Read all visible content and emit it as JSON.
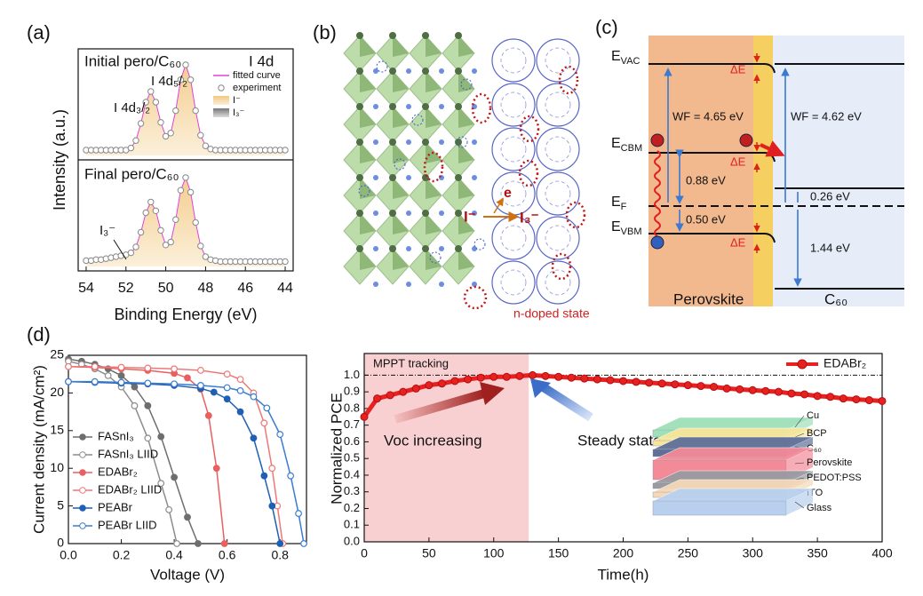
{
  "panel_labels": [
    "(a)",
    "(b)",
    "(c)",
    "(d)"
  ],
  "chart_data": [
    {
      "type": "line",
      "panel_titles": [
        "Initial pero/C₆₀",
        "Final pero/C₆₀"
      ],
      "annotation": "I 4d",
      "peak_labels": [
        "I 4d₃/₂",
        "I 4d₅/₂"
      ],
      "i3_label": "I₃⁻",
      "legend": [
        "fitted curve",
        "experiment",
        "I⁻",
        "I₃⁻"
      ],
      "xlabel": "Binding Energy (eV)",
      "ylabel": "Intensity (a.u.)",
      "xlim": [
        54.4,
        43.6
      ],
      "xticks": [
        54,
        52,
        50,
        48,
        46,
        44
      ],
      "x": [
        54,
        53.75,
        53.5,
        53.25,
        53,
        52.75,
        52.5,
        52.25,
        52,
        51.75,
        51.5,
        51.25,
        51,
        50.75,
        50.5,
        50.25,
        50,
        49.75,
        49.5,
        49.25,
        49,
        48.75,
        48.5,
        48.25,
        48,
        47.75,
        47.5,
        47.25,
        47,
        46.75,
        46.5,
        46.25,
        46,
        45.75,
        45.5,
        45.25,
        45,
        44.75,
        44.5,
        44.25,
        44
      ],
      "series": [
        {
          "color": "#888888",
          "values": [
            0.05,
            0.05,
            0.05,
            0.05,
            0.05,
            0.05,
            0.05,
            0.05,
            0.05,
            0.07,
            0.14,
            0.3,
            0.5,
            0.6,
            0.5,
            0.31,
            0.18,
            0.21,
            0.42,
            0.71,
            0.85,
            0.71,
            0.42,
            0.19,
            0.09,
            0.06,
            0.05,
            0.05,
            0.05,
            0.05,
            0.05,
            0.05,
            0.05,
            0.05,
            0.05,
            0.05,
            0.05,
            0.05,
            0.05,
            0.05,
            0.05
          ]
        },
        {
          "color": "#888888",
          "values": [
            0.06,
            0.06,
            0.07,
            0.07,
            0.08,
            0.09,
            0.1,
            0.11,
            0.12,
            0.14,
            0.2,
            0.35,
            0.55,
            0.66,
            0.57,
            0.37,
            0.22,
            0.25,
            0.48,
            0.78,
            0.91,
            0.76,
            0.45,
            0.21,
            0.1,
            0.07,
            0.06,
            0.05,
            0.05,
            0.05,
            0.05,
            0.05,
            0.05,
            0.05,
            0.05,
            0.05,
            0.05,
            0.05,
            0.05,
            0.05,
            0.05
          ]
        }
      ]
    },
    {
      "type": "line",
      "xlabel": "Voltage (V)",
      "ylabel": "Current density (mA/cm²)",
      "xlim": [
        0,
        0.9
      ],
      "ylim": [
        0,
        25
      ],
      "xticks": [
        {
          "value": 0,
          "label": "0.0"
        },
        0.2,
        0.4,
        0.6,
        0.8
      ],
      "yticks": [
        0,
        5,
        10,
        15,
        20,
        25
      ],
      "series": [
        {
          "name": "FASnI₃",
          "color": "#6e6e6e",
          "filled": true,
          "x": [
            0,
            0.05,
            0.1,
            0.15,
            0.2,
            0.25,
            0.3,
            0.35,
            0.4,
            0.45,
            0.49
          ],
          "values": [
            24.5,
            24.2,
            23.8,
            23.2,
            22.3,
            20.8,
            18.3,
            14.2,
            8.8,
            3.5,
            0
          ]
        },
        {
          "name": "FASnI₃ LIID",
          "color": "#8c8c8c",
          "filled": false,
          "x": [
            0,
            0.05,
            0.1,
            0.15,
            0.2,
            0.25,
            0.3,
            0.35,
            0.38,
            0.41
          ],
          "values": [
            24.2,
            23.8,
            23.2,
            22.3,
            20.8,
            18.3,
            14,
            8,
            4.5,
            0
          ]
        },
        {
          "name": "EDABr₂",
          "color": "#e8605f",
          "filled": true,
          "x": [
            0,
            0.1,
            0.2,
            0.3,
            0.4,
            0.45,
            0.5,
            0.53,
            0.56,
            0.59
          ],
          "values": [
            23.5,
            23.4,
            23.2,
            23,
            22.6,
            22,
            20.5,
            17,
            10,
            0
          ]
        },
        {
          "name": "EDABr₂ LIID",
          "color": "#ee7878",
          "filled": false,
          "x": [
            0,
            0.1,
            0.2,
            0.3,
            0.4,
            0.5,
            0.6,
            0.65,
            0.7,
            0.74,
            0.77,
            0.79,
            0.81
          ],
          "values": [
            23.5,
            23.5,
            23.4,
            23.3,
            23.2,
            23,
            22.5,
            21.8,
            20,
            16,
            10,
            5,
            0
          ]
        },
        {
          "name": "PEABr",
          "color": "#1f5fb4",
          "filled": true,
          "x": [
            0,
            0.1,
            0.2,
            0.3,
            0.4,
            0.5,
            0.55,
            0.6,
            0.65,
            0.7,
            0.74,
            0.77,
            0.8
          ],
          "values": [
            21.5,
            21.4,
            21.3,
            21.2,
            21,
            20.6,
            20.1,
            19.2,
            17.5,
            14,
            9,
            5,
            0
          ]
        },
        {
          "name": "PEABr LIID",
          "color": "#3a7cd0",
          "filled": false,
          "x": [
            0,
            0.1,
            0.2,
            0.3,
            0.4,
            0.5,
            0.6,
            0.65,
            0.7,
            0.75,
            0.8,
            0.84,
            0.87,
            0.89
          ],
          "values": [
            21.5,
            21.5,
            21.4,
            21.3,
            21.2,
            21,
            20.7,
            20.3,
            19.5,
            18,
            14.5,
            9,
            4,
            0
          ]
        }
      ]
    },
    {
      "type": "line",
      "xlabel": "Time(h)",
      "ylabel": "Normalized PCE",
      "xlim": [
        0,
        400
      ],
      "ylim": [
        0,
        1.13
      ],
      "xticks": [
        0,
        50,
        100,
        150,
        200,
        250,
        300,
        350,
        400
      ],
      "yticks": [
        {
          "value": 0,
          "label": "0.0"
        },
        0.1,
        0.2,
        0.3,
        0.4,
        0.5,
        0.6,
        0.7,
        0.8,
        0.9,
        {
          "value": 1,
          "label": "1.0"
        }
      ],
      "reference_line": 1,
      "shaded_x": [
        0,
        127
      ],
      "annotations": [
        "MPPT tracking",
        "Voc increasing",
        "Steady state"
      ],
      "legend_corner": "upper right",
      "x": [
        0,
        10,
        20,
        30,
        40,
        50,
        60,
        70,
        80,
        90,
        100,
        110,
        120,
        130,
        140,
        150,
        160,
        170,
        180,
        190,
        200,
        210,
        220,
        230,
        240,
        250,
        260,
        270,
        280,
        290,
        300,
        310,
        320,
        330,
        340,
        350,
        360,
        370,
        380,
        390,
        400
      ],
      "series": [
        {
          "name": "EDABr₂",
          "color": "#e82020",
          "values": [
            0.75,
            0.86,
            0.88,
            0.9,
            0.92,
            0.94,
            0.95,
            0.965,
            0.975,
            0.985,
            0.99,
            0.99,
            0.995,
            1.0,
            0.995,
            0.99,
            0.985,
            0.98,
            0.975,
            0.97,
            0.965,
            0.96,
            0.955,
            0.95,
            0.945,
            0.94,
            0.935,
            0.93,
            0.92,
            0.915,
            0.91,
            0.905,
            0.9,
            0.89,
            0.885,
            0.875,
            0.87,
            0.86,
            0.855,
            0.85,
            0.845
          ]
        }
      ],
      "inset_layers": [
        "Cu",
        "BCP",
        "C₆₀",
        "Perovskite",
        "PEDOT:PSS",
        "ITO",
        "Glass"
      ]
    }
  ],
  "diagram_b": {
    "caption": "n-doped state",
    "ion_left": "I⁻",
    "ion_right": "I₃⁻",
    "electron": "e"
  },
  "diagram_c": {
    "levels": [
      {
        "main": "E",
        "sub": "VAC"
      },
      {
        "main": "E",
        "sub": "CBM"
      },
      {
        "main": "E",
        "sub": "F"
      },
      {
        "main": "E",
        "sub": "VBM"
      }
    ],
    "delta_labels": [
      "ΔE",
      "ΔE",
      "ΔE"
    ],
    "wf_left": "WF = 4.65 eV",
    "wf_right": "WF = 4.62 eV",
    "gaps": [
      "0.88 eV",
      "0.50 eV",
      "0.26 eV",
      "1.44 eV"
    ],
    "regions": [
      "Perovskite",
      "C₆₀"
    ]
  }
}
